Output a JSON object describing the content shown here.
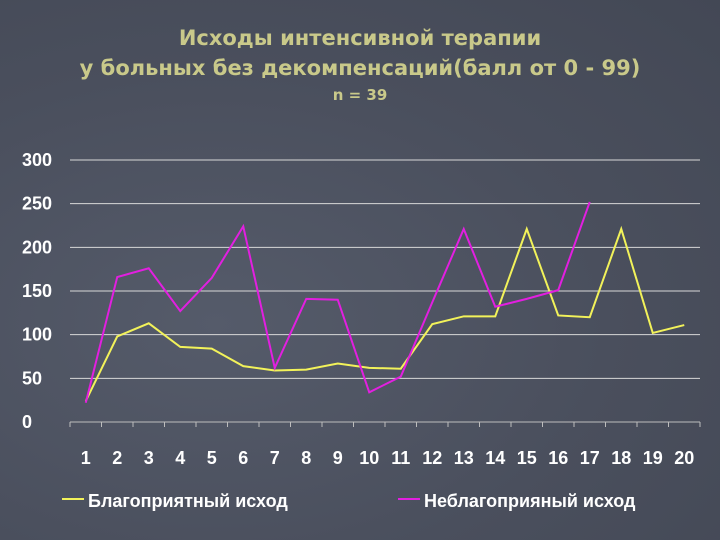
{
  "chart_data": {
    "type": "line",
    "title": "Исходы интенсивной терапии",
    "subtitle": "у больных без декомпенсаций(балл от 0 - 99)",
    "note": "n = 39",
    "categories": [
      "1",
      "2",
      "3",
      "4",
      "5",
      "6",
      "7",
      "8",
      "9",
      "10",
      "11",
      "12",
      "13",
      "14",
      "15",
      "16",
      "17",
      "18",
      "19",
      "20"
    ],
    "ylim": [
      0,
      300
    ],
    "yticks": [
      "0",
      "50",
      "100",
      "150",
      "200",
      "250",
      "300"
    ],
    "grid": true,
    "legend_position": "bottom",
    "series": [
      {
        "name": "Благоприятный исход",
        "color": "#f2f25a",
        "values": [
          24,
          98,
          113,
          86,
          84,
          64,
          59,
          60,
          67,
          62,
          61,
          112,
          121,
          121,
          221,
          122,
          120,
          221,
          102,
          111
        ]
      },
      {
        "name": "Неблагоприяный исход",
        "color": "#e21fe0",
        "values": [
          22,
          166,
          176,
          127,
          165,
          224,
          62,
          141,
          140,
          34,
          52,
          137,
          221,
          132,
          141,
          151,
          252,
          null,
          null,
          null
        ]
      }
    ]
  }
}
